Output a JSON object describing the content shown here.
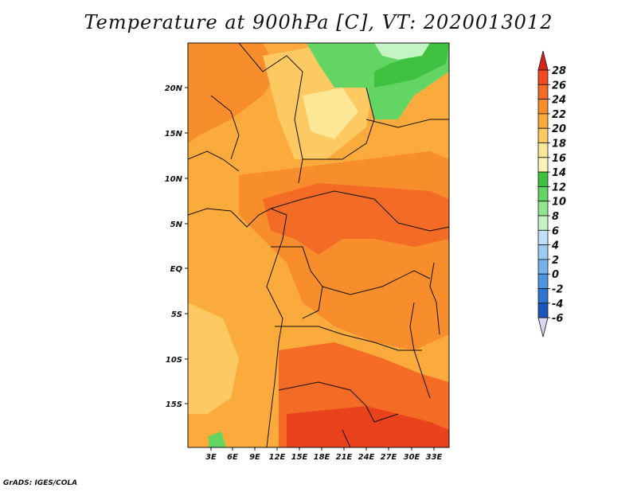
{
  "title": "Temperature at 900hPa [C], VT: 2020013012",
  "credit": "GrADS: IGES/COLA",
  "map": {
    "lat_ticks": [
      "20N",
      "15N",
      "10N",
      "5N",
      "EQ",
      "5S",
      "10S",
      "15S"
    ],
    "lon_ticks": [
      "3E",
      "6E",
      "9E",
      "12E",
      "15E",
      "18E",
      "21E",
      "24E",
      "27E",
      "30E",
      "33E"
    ]
  },
  "colorbar": {
    "labels": [
      "28",
      "26",
      "24",
      "22",
      "20",
      "18",
      "16",
      "14",
      "12",
      "10",
      "8",
      "6",
      "4",
      "2",
      "0",
      "-2",
      "-4",
      "-6"
    ],
    "colors": [
      "#f04a1e",
      "#f46b25",
      "#f88d2c",
      "#fbab3c",
      "#fcc963",
      "#fde695",
      "#fbf3b9",
      "#3ec13e",
      "#63d563",
      "#8fe68f",
      "#c4f4c4",
      "#bfe0f7",
      "#9dccf2",
      "#75b1ea",
      "#4f94e0",
      "#2c74d2",
      "#1a55bd",
      "#0c37a1",
      "#0a1d6e"
    ],
    "top_color": "#d6261a",
    "bottom_color": "#d8d8f0"
  },
  "field_colors": {
    "t17": "#fde695",
    "t19": "#fcc963",
    "t21": "#fbab3c",
    "t23": "#f88d2c",
    "t25": "#f46b25",
    "t27": "#e9421c",
    "green1": "#3ec13e",
    "green2": "#63d563",
    "green3": "#8fe68f",
    "pale": "#fbf3b9"
  }
}
